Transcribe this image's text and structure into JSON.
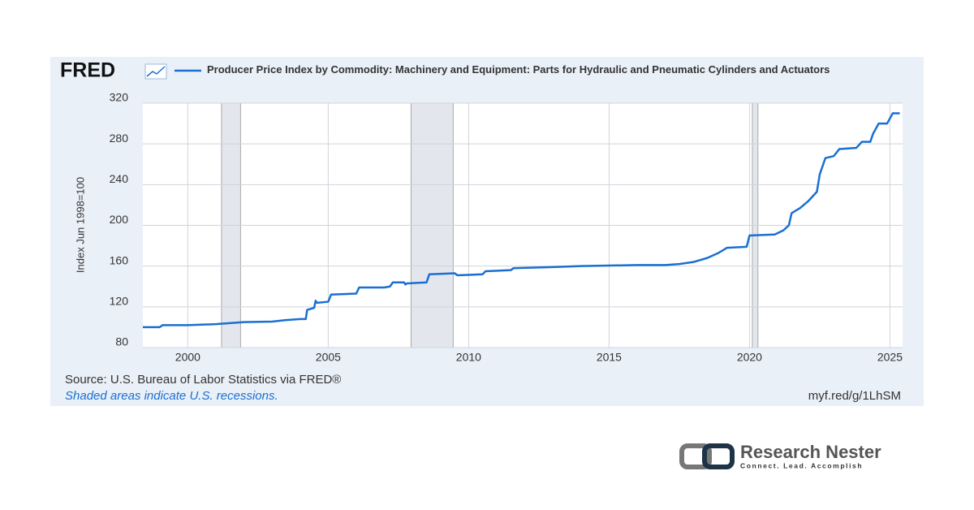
{
  "chart_data": {
    "type": "line",
    "logo": "FRED",
    "title": "Producer Price Index by Commodity: Machinery and Equipment: Parts for Hydraulic and Pneumatic Cylinders and Actuators",
    "y_label": "Index Jun 1998=100",
    "color": "#1a6fd1",
    "x": [
      1998.4,
      1999.0,
      1999.1,
      2000.0,
      2001.0,
      2002.0,
      2003.0,
      2003.5,
      2004.0,
      2004.2,
      2004.25,
      2004.5,
      2004.55,
      2004.6,
      2005.0,
      2005.1,
      2006.0,
      2006.1,
      2007.0,
      2007.2,
      2007.3,
      2007.7,
      2007.75,
      2007.8,
      2008.5,
      2008.6,
      2009.5,
      2009.6,
      2010.5,
      2010.6,
      2011.5,
      2011.6,
      2013.0,
      2014.0,
      2016.0,
      2017.0,
      2017.5,
      2018.0,
      2018.5,
      2018.9,
      2019.2,
      2019.9,
      2020.0,
      2020.9,
      2021.2,
      2021.4,
      2021.5,
      2021.8,
      2022.1,
      2022.4,
      2022.5,
      2022.7,
      2023.0,
      2023.2,
      2023.8,
      2024.0,
      2024.3,
      2024.4,
      2024.6,
      2024.9,
      2025.0,
      2025.1,
      2025.35
    ],
    "values": [
      100,
      100,
      102,
      102,
      103,
      105,
      105.5,
      107,
      108,
      108,
      117,
      119,
      126,
      124,
      125,
      132,
      133,
      139,
      139,
      140,
      144,
      144,
      142,
      143,
      144,
      152,
      153,
      151,
      152,
      155,
      156,
      158,
      159,
      160,
      161,
      161,
      162,
      164,
      168,
      173,
      178,
      179,
      190,
      191,
      195,
      200,
      212,
      217,
      224,
      233,
      250,
      266,
      268,
      275,
      276,
      282,
      282,
      290,
      300,
      300,
      305,
      310,
      310
    ],
    "recessions": [
      [
        2001.2,
        2001.88
      ],
      [
        2007.95,
        2009.45
      ],
      [
        2020.1,
        2020.3
      ]
    ],
    "xlim": [
      1998.4,
      2025.45
    ],
    "ylim": [
      80,
      320
    ],
    "xticks": [
      2000,
      2005,
      2010,
      2015,
      2020,
      2025
    ],
    "yticks": [
      80,
      120,
      160,
      200,
      240,
      280,
      320
    ],
    "grid": true,
    "source": "Source: U.S. Bureau of Labor Statistics via FRED®",
    "note": "Shaded areas indicate U.S. recessions.",
    "url": "myf.red/g/1LhSM"
  },
  "brand": {
    "name": "Research Nester",
    "tagline": "Connect. Lead. Accomplish"
  }
}
